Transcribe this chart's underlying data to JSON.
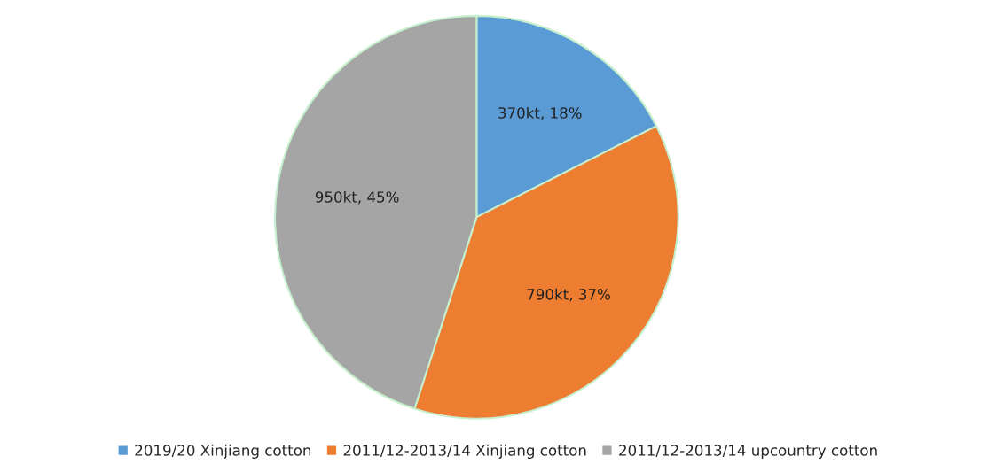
{
  "chart_data": {
    "type": "pie",
    "categories": [
      "2019/20 Xinjiang cotton",
      "2011/12-2013/14 Xinjiang cotton",
      "2011/12-2013/14 upcountry cotton"
    ],
    "values": [
      370,
      790,
      950
    ],
    "colors": [
      "#5b9bd5",
      "#ed7d31",
      "#a5a5a5"
    ],
    "value_labels": [
      "370kt, 18%",
      "790kt, 37%",
      "950kt, 45%"
    ],
    "legend": "bottom"
  }
}
